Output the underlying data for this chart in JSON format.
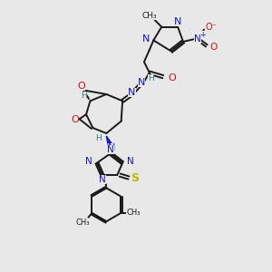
{
  "background_color": "#e8e8e8",
  "figsize": [
    3.0,
    3.0
  ],
  "dpi": 100,
  "colors": {
    "C": "#1a1a1a",
    "N": "#1414cc",
    "O": "#cc1414",
    "S": "#b8b800",
    "H": "#2d8080",
    "bond": "#1a1a1a"
  },
  "bond_lw": 1.4,
  "xlim": [
    0,
    10
  ],
  "ylim": [
    0,
    10
  ]
}
